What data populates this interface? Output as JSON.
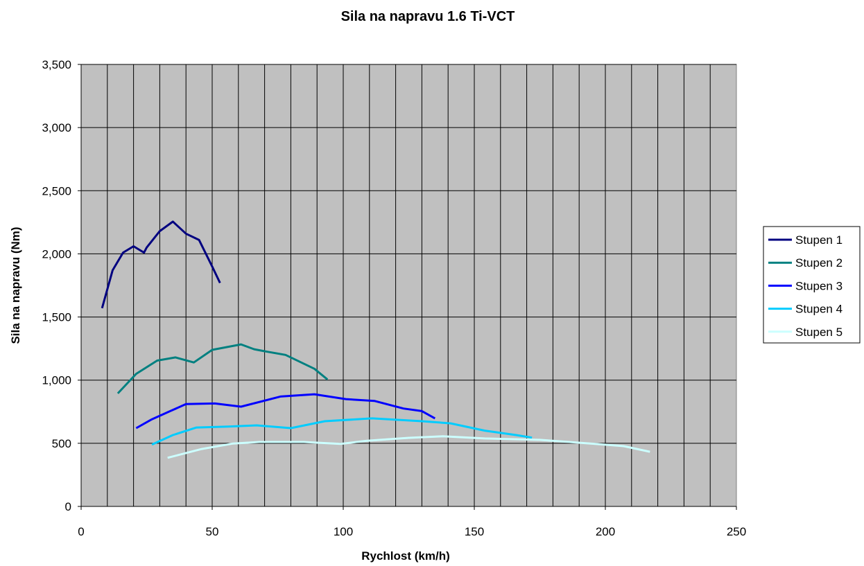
{
  "chart_data": {
    "type": "line",
    "title": "Sila na napravu 1.6 Ti-VCT",
    "xlabel": "Rychlost (km/h)",
    "ylabel": "Sila na napravu (Nm)",
    "xlim": [
      0,
      250
    ],
    "ylim": [
      0,
      3500
    ],
    "xticks": [
      0,
      50,
      100,
      150,
      200,
      250
    ],
    "xtick_labels": [
      "0",
      "50",
      "100",
      "150",
      "200",
      "250"
    ],
    "yticks": [
      0,
      500,
      1000,
      1500,
      2000,
      2500,
      3000,
      3500
    ],
    "ytick_labels": [
      "0",
      "500",
      "1,000",
      "1,500",
      "2,000",
      "2,500",
      "3,000",
      "3,500"
    ],
    "grid": true,
    "vertical_grid_step": 10,
    "plot_background": "#C0C0C0",
    "legend_position": "right",
    "series": [
      {
        "name": "Stupen 1",
        "color": "#000080",
        "x": [
          8,
          12,
          16,
          20,
          24,
          25,
          30,
          35,
          40,
          45,
          50,
          53
        ],
        "y": [
          1570,
          1870,
          2010,
          2060,
          2010,
          2050,
          2180,
          2255,
          2160,
          2110,
          1900,
          1770
        ]
      },
      {
        "name": "Stupen 2",
        "color": "#008080",
        "x": [
          14,
          21,
          29,
          36,
          43,
          50,
          61,
          66,
          71,
          78,
          89,
          94
        ],
        "y": [
          895,
          1050,
          1155,
          1180,
          1140,
          1240,
          1283,
          1245,
          1225,
          1200,
          1090,
          1005
        ]
      },
      {
        "name": "Stupen 3",
        "color": "#0000FF",
        "x": [
          21,
          27,
          34,
          40,
          51,
          61,
          76,
          89,
          101,
          112,
          123,
          130,
          135
        ],
        "y": [
          620,
          690,
          755,
          810,
          815,
          790,
          870,
          888,
          850,
          835,
          775,
          755,
          697
        ]
      },
      {
        "name": "Stupen 4",
        "color": "#00CCFF",
        "x": [
          27,
          35,
          44,
          56,
          67,
          80,
          93,
          111,
          130,
          141,
          154,
          166,
          172
        ],
        "y": [
          490,
          565,
          625,
          632,
          642,
          620,
          675,
          697,
          675,
          658,
          600,
          565,
          545
        ]
      },
      {
        "name": "Stupen 5",
        "color": "#CCFFFF",
        "x": [
          33,
          46,
          58,
          68,
          85,
          99,
          109,
          125,
          138,
          154,
          175,
          197,
          207,
          217
        ],
        "y": [
          385,
          455,
          498,
          510,
          510,
          495,
          520,
          543,
          555,
          538,
          527,
          494,
          477,
          433
        ]
      }
    ]
  }
}
